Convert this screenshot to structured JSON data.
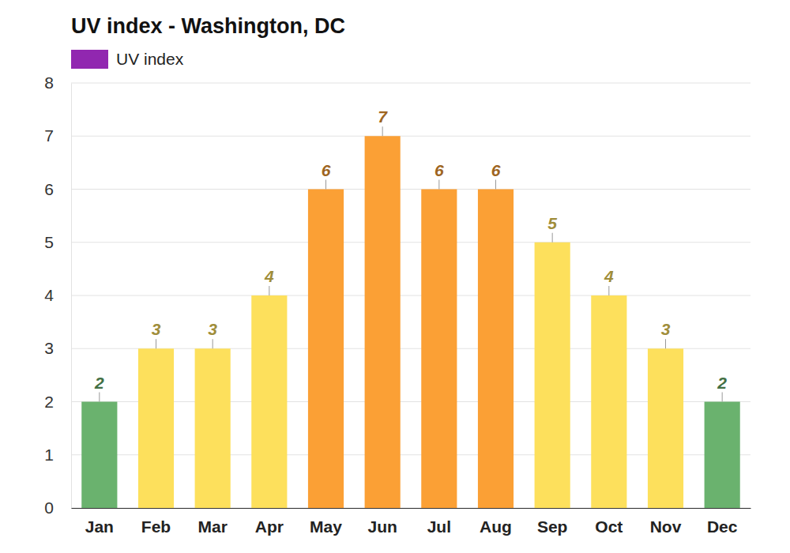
{
  "chart_data": {
    "type": "bar",
    "title": "UV index - Washington, DC",
    "categories": [
      "Jan",
      "Feb",
      "Mar",
      "Apr",
      "May",
      "Jun",
      "Jul",
      "Aug",
      "Sep",
      "Oct",
      "Nov",
      "Dec"
    ],
    "series": [
      {
        "name": "UV index",
        "color": "#9127b0",
        "values": [
          2,
          3,
          3,
          4,
          6,
          7,
          6,
          6,
          5,
          4,
          3,
          2
        ]
      }
    ],
    "colors": [
      "#6ab26e",
      "#fde05c",
      "#fde05c",
      "#fde05c",
      "#fba035",
      "#fba035",
      "#fba035",
      "#fba035",
      "#fde05c",
      "#fde05c",
      "#fde05c",
      "#6ab26e"
    ],
    "ylim": [
      0,
      8
    ],
    "yticks": [
      0,
      1,
      2,
      3,
      4,
      5,
      6,
      7,
      8
    ],
    "grid": true,
    "legend": "top-left",
    "data_labels": true
  }
}
